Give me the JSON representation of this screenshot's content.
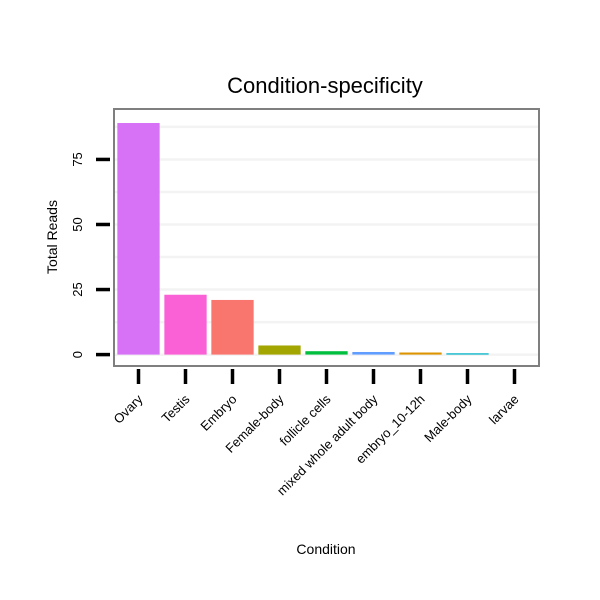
{
  "chart_data": {
    "type": "bar",
    "title": "Condition-specificity",
    "xlabel": "Condition",
    "ylabel": "Total Reads",
    "categories": [
      "Ovary",
      "Testis",
      "Embryo",
      "Female-body",
      "follicle cells",
      "mixed whole adult body",
      "embryo_10-12h",
      "Male-body",
      "larvae"
    ],
    "values": [
      89,
      23,
      21,
      3.5,
      1.3,
      1.0,
      0.8,
      0.5,
      0
    ],
    "colors": [
      "#d772f7",
      "#fb61d7",
      "#f8766d",
      "#a3a500",
      "#00bf3e",
      "#619cff",
      "#dc9400",
      "#00b3c9",
      "#c77cff"
    ],
    "yticks": [
      0,
      25,
      50,
      75
    ],
    "ylim": [
      -4,
      94
    ],
    "grid": true,
    "legend": "none"
  }
}
